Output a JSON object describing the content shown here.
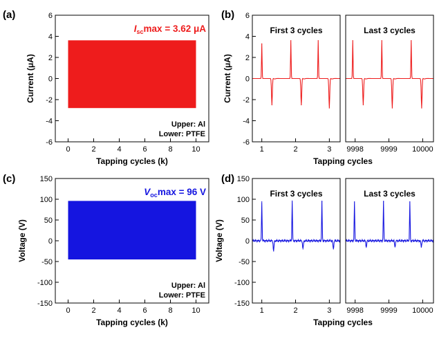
{
  "colors": {
    "red": "#ee1c1c",
    "blue": "#1515e0",
    "axis": "#000000"
  },
  "chart_data": [
    {
      "panel": "(a)",
      "type": "area",
      "title": "",
      "annotation": {
        "label": "max = 3.62 μA",
        "symbol": "I",
        "subscript": "sc"
      },
      "legend_text": [
        "Upper: Al",
        "Lower: PTFE"
      ],
      "xlabel": "Tapping cycles (k)",
      "ylabel": "Current (μA)",
      "xlim": [
        -1,
        11
      ],
      "ylim": [
        -6,
        6
      ],
      "xticks": [
        "0",
        "2",
        "4",
        "6",
        "8",
        "10"
      ],
      "yticks": [
        "-6",
        "-4",
        "-2",
        "0",
        "2",
        "4",
        "6"
      ],
      "series": [
        {
          "x": [
            0,
            10
          ],
          "upper": 3.62,
          "lower": -2.8,
          "color": "red"
        }
      ]
    },
    {
      "panel": "(b)",
      "type": "line",
      "xlabel": "Tapping cycles",
      "ylabel": "Current (μA)",
      "ylim": [
        -6,
        6
      ],
      "yticks": [
        "-6",
        "-4",
        "-2",
        "0",
        "2",
        "4",
        "6"
      ],
      "color": "red",
      "subpanels": [
        {
          "label": "First 3 cycles",
          "xlim": [
            0.72,
            3.32
          ],
          "xticks": [
            {
              "v": 1,
              "t": "1"
            },
            {
              "v": 2,
              "t": "2"
            },
            {
              "v": 3,
              "t": "3"
            }
          ],
          "peaks": [
            {
              "x": 1.0,
              "y": 3.3
            },
            {
              "x": 1.3,
              "y": -2.5
            },
            {
              "x": 1.86,
              "y": 3.6
            },
            {
              "x": 2.17,
              "y": -2.5
            },
            {
              "x": 2.67,
              "y": 3.6
            },
            {
              "x": 3.0,
              "y": -2.8
            }
          ]
        },
        {
          "label": "Last 3 cycles",
          "xlim": [
            9997.72,
            10000.32
          ],
          "xticks": [
            {
              "v": 9998,
              "t": "9998"
            },
            {
              "v": 9999,
              "t": "9999"
            },
            {
              "v": 10000,
              "t": "10000"
            }
          ],
          "peaks": [
            {
              "x": 9997.93,
              "y": 3.6
            },
            {
              "x": 9998.24,
              "y": -2.5
            },
            {
              "x": 9998.79,
              "y": 3.6
            },
            {
              "x": 9999.1,
              "y": -2.8
            },
            {
              "x": 9999.66,
              "y": 3.6
            },
            {
              "x": 9999.97,
              "y": -2.8
            }
          ]
        }
      ]
    },
    {
      "panel": "(c)",
      "type": "area",
      "title": "",
      "annotation": {
        "label": "max = 96 V",
        "symbol": "V",
        "subscript": "oc"
      },
      "legend_text": [
        "Upper: Al",
        "Lower: PTFE"
      ],
      "xlabel": "Tapping cycles (k)",
      "ylabel": "Voltage (V)",
      "xlim": [
        -1,
        11
      ],
      "ylim": [
        -150,
        150
      ],
      "xticks": [
        "0",
        "2",
        "4",
        "6",
        "8",
        "10"
      ],
      "yticks": [
        "-150",
        "-100",
        "-50",
        "0",
        "50",
        "100",
        "150"
      ],
      "series": [
        {
          "x": [
            0,
            10
          ],
          "upper": 96,
          "lower": -45,
          "color": "blue"
        }
      ]
    },
    {
      "panel": "(d)",
      "type": "line",
      "xlabel": "Tapping cycles",
      "ylabel": "Voltage (V)",
      "ylim": [
        -150,
        150
      ],
      "yticks": [
        "-150",
        "-100",
        "-50",
        "0",
        "50",
        "100",
        "150"
      ],
      "color": "blue",
      "subpanels": [
        {
          "label": "First 3 cycles",
          "xlim": [
            0.72,
            3.32
          ],
          "xticks": [
            {
              "v": 1,
              "t": "1"
            },
            {
              "v": 2,
              "t": "2"
            },
            {
              "v": 3,
              "t": "3"
            }
          ],
          "peaks": [
            {
              "x": 1.0,
              "y": 94
            },
            {
              "x": 1.35,
              "y": -25
            },
            {
              "x": 1.9,
              "y": 96
            },
            {
              "x": 2.22,
              "y": -20
            },
            {
              "x": 2.78,
              "y": 94
            },
            {
              "x": 3.12,
              "y": -20
            }
          ]
        },
        {
          "label": "Last 3 cycles",
          "xlim": [
            9997.72,
            10000.32
          ],
          "xticks": [
            {
              "v": 9998,
              "t": "9998"
            },
            {
              "v": 9999,
              "t": "9999"
            },
            {
              "v": 10000,
              "t": "10000"
            }
          ],
          "peaks": [
            {
              "x": 9997.98,
              "y": 94
            },
            {
              "x": 9998.33,
              "y": -15
            },
            {
              "x": 9998.84,
              "y": 94
            },
            {
              "x": 9999.18,
              "y": -15
            },
            {
              "x": 9999.62,
              "y": 94
            },
            {
              "x": 9999.96,
              "y": -15
            }
          ]
        }
      ]
    }
  ]
}
